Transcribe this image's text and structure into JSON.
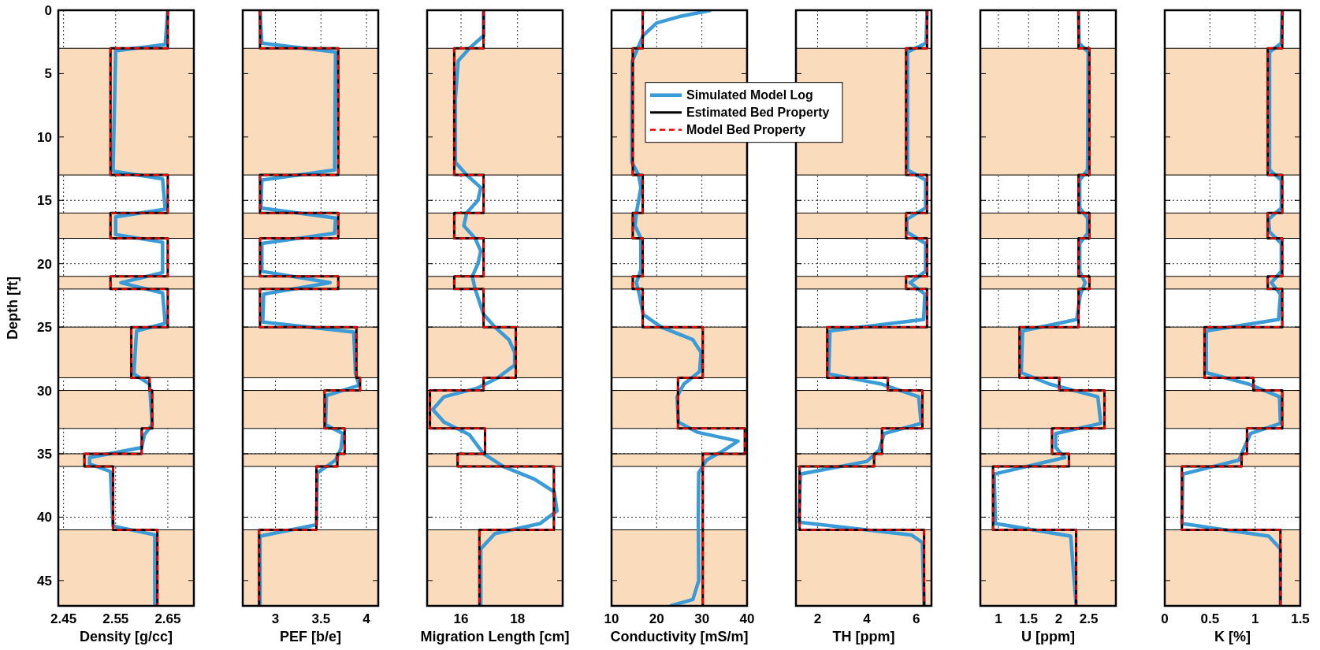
{
  "chart_data": [
    {
      "type": "line",
      "xlabel": "Density [g/cc]",
      "ylabel": "Depth [ft]",
      "xlim": [
        2.44,
        2.7
      ],
      "xticks": [
        2.45,
        2.55,
        2.65
      ],
      "ylim": [
        47,
        0
      ],
      "yticks": [
        0,
        5,
        10,
        15,
        20,
        25,
        30,
        35,
        40,
        45
      ],
      "grid": true,
      "bands": [
        {
          "axis": "y",
          "from": 3,
          "to": 13,
          "color": "#fadcbc"
        },
        {
          "axis": "y",
          "from": 16,
          "to": 18,
          "color": "#fadcbc"
        },
        {
          "axis": "y",
          "from": 21,
          "to": 22,
          "color": "#fadcbc"
        },
        {
          "axis": "y",
          "from": 25,
          "to": 29,
          "color": "#fadcbc"
        },
        {
          "axis": "y",
          "from": 30,
          "to": 33,
          "color": "#fadcbc"
        },
        {
          "axis": "y",
          "from": 35,
          "to": 36,
          "color": "#fadcbc"
        },
        {
          "axis": "y",
          "from": 41,
          "to": 47,
          "color": "#fadcbc"
        }
      ],
      "series": [
        {
          "color": "#3b9bd6",
          "line_style": "solid",
          "x": [
            2.65,
            2.645,
            2.55,
            2.545,
            2.64,
            2.645,
            2.55,
            2.55,
            2.64,
            2.64,
            2.56,
            2.64,
            2.645,
            2.59,
            2.585,
            2.615,
            2.62,
            2.605,
            2.6,
            2.5,
            2.5,
            2.54,
            2.545,
            2.625,
            2.625
          ],
          "values": [
            0,
            2.7,
            3.2,
            12.7,
            13.3,
            15.7,
            16.3,
            17.7,
            18.3,
            20.7,
            21.5,
            22.3,
            24.7,
            25.3,
            28.7,
            29.5,
            32.7,
            33.5,
            34.5,
            35.3,
            35.8,
            36.4,
            40.7,
            41.4,
            47
          ]
        },
        {
          "color": "#000000",
          "line_style": "solid",
          "x": [
            2.65,
            2.65,
            2.54,
            2.54,
            2.65,
            2.65,
            2.54,
            2.54,
            2.65,
            2.65,
            2.54,
            2.54,
            2.65,
            2.65,
            2.58,
            2.58,
            2.615,
            2.615,
            2.62,
            2.62,
            2.6,
            2.6,
            2.49,
            2.49,
            2.545,
            2.545,
            2.63,
            2.63
          ],
          "values": [
            0,
            3,
            3,
            13,
            13,
            16,
            16,
            18,
            18,
            21,
            21,
            22,
            22,
            25,
            25,
            29,
            29,
            30,
            30,
            33,
            33,
            35,
            35,
            36,
            36,
            41,
            41,
            47
          ]
        },
        {
          "color": "#ff0000",
          "line_style": "dashed",
          "x": [
            2.65,
            2.65,
            2.54,
            2.54,
            2.65,
            2.65,
            2.54,
            2.54,
            2.65,
            2.65,
            2.54,
            2.54,
            2.65,
            2.65,
            2.58,
            2.58,
            2.615,
            2.615,
            2.62,
            2.62,
            2.6,
            2.6,
            2.49,
            2.49,
            2.545,
            2.545,
            2.63,
            2.63
          ],
          "values": [
            0,
            3,
            3,
            13,
            13,
            16,
            16,
            18,
            18,
            21,
            21,
            22,
            22,
            25,
            25,
            29,
            29,
            30,
            30,
            33,
            33,
            35,
            35,
            36,
            36,
            41,
            41,
            47
          ]
        }
      ]
    },
    {
      "type": "line",
      "xlabel": "PEF [b/e]",
      "xlim": [
        2.64,
        4.13
      ],
      "xticks": [
        3,
        3.5,
        4
      ],
      "ylim": [
        47,
        0
      ],
      "yticks": [
        0,
        5,
        10,
        15,
        20,
        25,
        30,
        35,
        40,
        45
      ],
      "grid": true,
      "tick_labels": "x",
      "bands": [
        {
          "axis": "y",
          "from": 3,
          "to": 13,
          "color": "#fadcbc"
        },
        {
          "axis": "y",
          "from": 16,
          "to": 18,
          "color": "#fadcbc"
        },
        {
          "axis": "y",
          "from": 21,
          "to": 22,
          "color": "#fadcbc"
        },
        {
          "axis": "y",
          "from": 25,
          "to": 29,
          "color": "#fadcbc"
        },
        {
          "axis": "y",
          "from": 30,
          "to": 33,
          "color": "#fadcbc"
        },
        {
          "axis": "y",
          "from": 35,
          "to": 36,
          "color": "#fadcbc"
        },
        {
          "axis": "y",
          "from": 41,
          "to": 47,
          "color": "#fadcbc"
        }
      ],
      "series": [
        {
          "color": "#3b9bd6",
          "line_style": "solid",
          "x": [
            2.83,
            2.85,
            3.66,
            3.65,
            2.85,
            2.84,
            3.66,
            3.65,
            2.85,
            2.85,
            3.6,
            2.87,
            2.86,
            3.86,
            3.88,
            3.92,
            3.56,
            3.55,
            3.74,
            3.72,
            3.66,
            3.46,
            3.45,
            2.83,
            2.83
          ],
          "values": [
            0,
            2.6,
            3.3,
            12.6,
            13.4,
            15.6,
            16.4,
            17.6,
            18.4,
            20.6,
            21.5,
            22.4,
            24.6,
            25.4,
            28.7,
            29.6,
            30.4,
            32.7,
            33.4,
            34.6,
            35.5,
            36.5,
            40.6,
            41.5,
            47
          ]
        },
        {
          "color": "#000000",
          "line_style": "solid",
          "x": [
            2.83,
            2.83,
            3.69,
            3.69,
            2.83,
            2.83,
            3.69,
            3.69,
            2.83,
            2.83,
            3.69,
            3.69,
            2.83,
            2.83,
            3.89,
            3.89,
            3.93,
            3.93,
            3.54,
            3.54,
            3.76,
            3.76,
            3.68,
            3.68,
            3.45,
            3.45,
            2.82,
            2.82
          ],
          "values": [
            0,
            3,
            3,
            13,
            13,
            16,
            16,
            18,
            18,
            21,
            21,
            22,
            22,
            25,
            25,
            29,
            29,
            30,
            30,
            33,
            33,
            35,
            35,
            36,
            36,
            41,
            41,
            47
          ]
        },
        {
          "color": "#ff0000",
          "line_style": "dashed",
          "x": [
            2.83,
            2.83,
            3.69,
            3.69,
            2.83,
            2.83,
            3.69,
            3.69,
            2.83,
            2.83,
            3.69,
            3.69,
            2.83,
            2.83,
            3.89,
            3.89,
            3.93,
            3.93,
            3.54,
            3.54,
            3.76,
            3.76,
            3.68,
            3.68,
            3.45,
            3.45,
            2.82,
            2.82
          ],
          "values": [
            0,
            3,
            3,
            13,
            13,
            16,
            16,
            18,
            18,
            21,
            21,
            22,
            22,
            25,
            25,
            29,
            29,
            30,
            30,
            33,
            33,
            35,
            35,
            36,
            36,
            41,
            41,
            47
          ]
        }
      ]
    },
    {
      "type": "line",
      "xlabel": "Migration Length [cm]",
      "xlim": [
        14.8,
        19.6
      ],
      "xticks": [
        16,
        18
      ],
      "ylim": [
        47,
        0
      ],
      "yticks": [
        0,
        5,
        10,
        15,
        20,
        25,
        30,
        35,
        40,
        45
      ],
      "grid": true,
      "tick_labels": "x",
      "bands": [
        {
          "axis": "y",
          "from": 3,
          "to": 13,
          "color": "#fadcbc"
        },
        {
          "axis": "y",
          "from": 16,
          "to": 18,
          "color": "#fadcbc"
        },
        {
          "axis": "y",
          "from": 21,
          "to": 22,
          "color": "#fadcbc"
        },
        {
          "axis": "y",
          "from": 25,
          "to": 29,
          "color": "#fadcbc"
        },
        {
          "axis": "y",
          "from": 30,
          "to": 33,
          "color": "#fadcbc"
        },
        {
          "axis": "y",
          "from": 35,
          "to": 36,
          "color": "#fadcbc"
        },
        {
          "axis": "y",
          "from": 41,
          "to": 47,
          "color": "#fadcbc"
        }
      ],
      "series": [
        {
          "color": "#3b9bd6",
          "line_style": "solid",
          "x": [
            16.8,
            16.8,
            16.3,
            15.9,
            15.8,
            15.8,
            16.2,
            16.7,
            16.6,
            16.2,
            16.1,
            16.5,
            16.7,
            16.6,
            16.4,
            16.5,
            16.8,
            17.2,
            17.7,
            17.9,
            17.9,
            17.3,
            16.6,
            15.4,
            15,
            15.4,
            16.3,
            16.8,
            17.5,
            18.6,
            19.3,
            19.4,
            18.8,
            17.2,
            16.7,
            16.7
          ],
          "values": [
            0,
            2,
            3,
            4,
            7,
            12,
            13,
            14,
            15,
            16,
            17,
            18,
            19,
            20,
            21,
            22,
            24,
            25,
            26,
            27,
            28,
            29,
            29.8,
            30.5,
            31.5,
            32.5,
            33.5,
            35,
            36,
            37,
            38,
            39.5,
            40.5,
            41.3,
            42.5,
            47
          ]
        },
        {
          "color": "#000000",
          "line_style": "solid",
          "x": [
            16.8,
            16.8,
            15.76,
            15.76,
            16.8,
            16.8,
            15.76,
            15.76,
            16.8,
            16.8,
            15.76,
            15.76,
            16.8,
            16.8,
            17.94,
            17.94,
            16.8,
            16.8,
            14.9,
            14.9,
            16.85,
            16.85,
            15.88,
            15.88,
            19.29,
            19.29,
            16.65,
            16.65
          ],
          "values": [
            0,
            3,
            3,
            13,
            13,
            16,
            16,
            18,
            18,
            21,
            21,
            22,
            22,
            25,
            25,
            29,
            29,
            30,
            30,
            33,
            33,
            35,
            35,
            36,
            36,
            41,
            41,
            47
          ]
        },
        {
          "color": "#ff0000",
          "line_style": "dashed",
          "x": [
            16.8,
            16.8,
            15.76,
            15.76,
            16.8,
            16.8,
            15.76,
            15.76,
            16.8,
            16.8,
            15.76,
            15.76,
            16.8,
            16.8,
            17.94,
            17.94,
            16.8,
            16.8,
            14.9,
            14.9,
            16.85,
            16.85,
            15.88,
            15.88,
            19.29,
            19.29,
            16.65,
            16.65
          ],
          "values": [
            0,
            3,
            3,
            13,
            13,
            16,
            16,
            18,
            18,
            21,
            21,
            22,
            22,
            25,
            25,
            29,
            29,
            30,
            30,
            33,
            33,
            35,
            35,
            36,
            36,
            41,
            41,
            47
          ]
        }
      ]
    },
    {
      "type": "line",
      "xlabel": "Conductivity [mS/m]",
      "xlim": [
        10,
        40
      ],
      "xticks": [
        10,
        20,
        30,
        40
      ],
      "ylim": [
        47,
        0
      ],
      "yticks": [
        0,
        5,
        10,
        15,
        20,
        25,
        30,
        35,
        40,
        45
      ],
      "grid": true,
      "tick_labels": "x",
      "legend": "top right",
      "bands": [
        {
          "axis": "y",
          "from": 3,
          "to": 13,
          "color": "#fadcbc"
        },
        {
          "axis": "y",
          "from": 16,
          "to": 18,
          "color": "#fadcbc"
        },
        {
          "axis": "y",
          "from": 21,
          "to": 22,
          "color": "#fadcbc"
        },
        {
          "axis": "y",
          "from": 25,
          "to": 29,
          "color": "#fadcbc"
        },
        {
          "axis": "y",
          "from": 30,
          "to": 33,
          "color": "#fadcbc"
        },
        {
          "axis": "y",
          "from": 35,
          "to": 36,
          "color": "#fadcbc"
        },
        {
          "axis": "y",
          "from": 41,
          "to": 47,
          "color": "#fadcbc"
        }
      ],
      "series": [
        {
          "name": "Simulated Model Log",
          "color": "#3b9bd6",
          "line_style": "solid",
          "x": [
            32,
            25,
            20,
            17,
            15.8,
            14.6,
            14.5,
            14.5,
            16,
            16.5,
            15.5,
            15.2,
            16.5,
            16.5,
            15.5,
            16.2,
            17,
            21,
            28,
            29.8,
            29.5,
            26,
            24.5,
            24.8,
            29,
            38,
            35,
            31,
            29.3,
            29.2,
            29.3,
            28,
            23
          ],
          "values": [
            0,
            0.5,
            1,
            2,
            3,
            4,
            8,
            12,
            13,
            14,
            16,
            17,
            18,
            20.5,
            21.5,
            22.5,
            24,
            25,
            26,
            27,
            28.5,
            29.5,
            30.5,
            32.5,
            33.3,
            34,
            34.7,
            35.5,
            36.5,
            40,
            45,
            46.5,
            47
          ]
        },
        {
          "name": "Estimated Bed Property",
          "color": "#000000",
          "line_style": "solid",
          "x": [
            16.9,
            16.9,
            14.7,
            14.7,
            16.9,
            16.9,
            14.7,
            14.7,
            16.9,
            16.9,
            14.7,
            14.7,
            16.9,
            16.9,
            30.2,
            30.2,
            24.7,
            24.7,
            24.7,
            24.7,
            39.5,
            39.5,
            30.2,
            30.2,
            30.2,
            30.2,
            30.2,
            30.2
          ],
          "values": [
            0,
            3,
            3,
            13,
            13,
            16,
            16,
            18,
            18,
            21,
            21,
            22,
            22,
            25,
            25,
            29,
            29,
            30,
            30,
            33,
            33,
            35,
            35,
            36,
            36,
            41,
            41,
            47
          ]
        },
        {
          "name": "Model Bed Property",
          "color": "#ff0000",
          "line_style": "dashed",
          "x": [
            16.9,
            16.9,
            14.7,
            14.7,
            16.9,
            16.9,
            14.7,
            14.7,
            16.9,
            16.9,
            14.7,
            14.7,
            16.9,
            16.9,
            30.2,
            30.2,
            24.7,
            24.7,
            24.7,
            24.7,
            39.5,
            39.5,
            30.2,
            30.2,
            30.2,
            30.2,
            30.2,
            30.2
          ],
          "values": [
            0,
            3,
            3,
            13,
            13,
            16,
            16,
            18,
            18,
            21,
            21,
            22,
            22,
            25,
            25,
            29,
            29,
            30,
            30,
            33,
            33,
            35,
            35,
            36,
            36,
            41,
            41,
            47
          ]
        }
      ]
    },
    {
      "type": "line",
      "xlabel": "TH [ppm]",
      "xlim": [
        1.12,
        6.62
      ],
      "xticks": [
        2,
        4,
        6
      ],
      "ylim": [
        47,
        0
      ],
      "yticks": [
        0,
        5,
        10,
        15,
        20,
        25,
        30,
        35,
        40,
        45
      ],
      "grid": true,
      "tick_labels": "x",
      "bands": [
        {
          "axis": "y",
          "from": 3,
          "to": 13,
          "color": "#fadcbc"
        },
        {
          "axis": "y",
          "from": 16,
          "to": 18,
          "color": "#fadcbc"
        },
        {
          "axis": "y",
          "from": 21,
          "to": 22,
          "color": "#fadcbc"
        },
        {
          "axis": "y",
          "from": 25,
          "to": 29,
          "color": "#fadcbc"
        },
        {
          "axis": "y",
          "from": 30,
          "to": 33,
          "color": "#fadcbc"
        },
        {
          "axis": "y",
          "from": 35,
          "to": 36,
          "color": "#fadcbc"
        },
        {
          "axis": "y",
          "from": 41,
          "to": 47,
          "color": "#fadcbc"
        }
      ],
      "series": [
        {
          "color": "#3b9bd6",
          "line_style": "solid",
          "x": [
            6.44,
            6.4,
            5.65,
            5.65,
            6.38,
            6.38,
            5.62,
            5.62,
            6.38,
            6.38,
            5.75,
            6.35,
            6.3,
            2.5,
            2.45,
            4.6,
            6.1,
            6.2,
            4.7,
            4.5,
            4,
            1.3,
            1.25,
            5.8,
            6.25,
            6.32
          ],
          "values": [
            0,
            2.6,
            3.3,
            12.6,
            13.4,
            15.6,
            16.5,
            17.5,
            18.4,
            20.6,
            21.5,
            22.4,
            24.4,
            25.3,
            28.7,
            29.5,
            30.5,
            32.6,
            33.4,
            34.7,
            35.6,
            36.6,
            40.4,
            41.4,
            42,
            47
          ]
        },
        {
          "color": "#000000",
          "line_style": "solid",
          "x": [
            6.44,
            6.44,
            5.59,
            5.59,
            6.44,
            6.44,
            5.59,
            5.59,
            6.44,
            6.44,
            5.59,
            5.59,
            6.44,
            6.44,
            2.39,
            2.39,
            4.85,
            4.85,
            6.25,
            6.25,
            4.61,
            4.61,
            4.29,
            4.29,
            1.27,
            1.27,
            6.32,
            6.32
          ],
          "values": [
            0,
            3,
            3,
            13,
            13,
            16,
            16,
            18,
            18,
            21,
            21,
            22,
            22,
            25,
            25,
            29,
            29,
            30,
            30,
            33,
            33,
            35,
            35,
            36,
            36,
            41,
            41,
            47
          ]
        },
        {
          "color": "#ff0000",
          "line_style": "dashed",
          "x": [
            6.44,
            6.44,
            5.59,
            5.59,
            6.44,
            6.44,
            5.59,
            5.59,
            6.44,
            6.44,
            5.59,
            5.59,
            6.44,
            6.44,
            2.39,
            2.39,
            4.85,
            4.85,
            6.25,
            6.25,
            4.61,
            4.61,
            4.29,
            4.29,
            1.27,
            1.27,
            6.32,
            6.32
          ],
          "values": [
            0,
            3,
            3,
            13,
            13,
            16,
            16,
            18,
            18,
            21,
            21,
            22,
            22,
            25,
            25,
            29,
            29,
            30,
            30,
            33,
            33,
            35,
            35,
            36,
            36,
            41,
            41,
            47
          ]
        }
      ]
    },
    {
      "type": "line",
      "xlabel": "U [ppm]",
      "xlim": [
        0.7,
        2.95
      ],
      "xticks": [
        1,
        1.5,
        2,
        2.5
      ],
      "ylim": [
        47,
        0
      ],
      "yticks": [
        0,
        5,
        10,
        15,
        20,
        25,
        30,
        35,
        40,
        45
      ],
      "grid": true,
      "tick_labels": "x",
      "bands": [
        {
          "axis": "y",
          "from": 3,
          "to": 13,
          "color": "#fadcbc"
        },
        {
          "axis": "y",
          "from": 16,
          "to": 18,
          "color": "#fadcbc"
        },
        {
          "axis": "y",
          "from": 21,
          "to": 22,
          "color": "#fadcbc"
        },
        {
          "axis": "y",
          "from": 25,
          "to": 29,
          "color": "#fadcbc"
        },
        {
          "axis": "y",
          "from": 30,
          "to": 33,
          "color": "#fadcbc"
        },
        {
          "axis": "y",
          "from": 35,
          "to": 36,
          "color": "#fadcbc"
        },
        {
          "axis": "y",
          "from": 41,
          "to": 47,
          "color": "#fadcbc"
        }
      ],
      "series": [
        {
          "color": "#3b9bd6",
          "line_style": "solid",
          "x": [
            2.33,
            2.34,
            2.49,
            2.48,
            2.35,
            2.35,
            2.48,
            2.48,
            2.35,
            2.35,
            2.44,
            2.36,
            2.3,
            1.4,
            1.38,
            1.85,
            2.65,
            2.7,
            1.95,
            1.95,
            2.1,
            0.93,
            0.95,
            2.2,
            2.29
          ],
          "values": [
            0,
            2.6,
            3.3,
            12.6,
            13.4,
            15.6,
            16.4,
            17.6,
            18.4,
            20.6,
            21.5,
            22.4,
            24.4,
            25.3,
            28.6,
            29.5,
            30.5,
            32.6,
            33.4,
            34.5,
            35.3,
            36.6,
            40.5,
            41.5,
            47
          ]
        },
        {
          "color": "#000000",
          "line_style": "solid",
          "x": [
            2.33,
            2.33,
            2.51,
            2.51,
            2.33,
            2.33,
            2.51,
            2.51,
            2.33,
            2.33,
            2.51,
            2.51,
            2.33,
            2.33,
            1.35,
            1.35,
            2.01,
            2.01,
            2.76,
            2.76,
            1.89,
            1.89,
            2.17,
            2.17,
            0.91,
            0.91,
            2.29,
            2.29
          ],
          "values": [
            0,
            3,
            3,
            13,
            13,
            16,
            16,
            18,
            18,
            21,
            21,
            22,
            22,
            25,
            25,
            29,
            29,
            30,
            30,
            33,
            33,
            35,
            35,
            36,
            36,
            41,
            41,
            47
          ]
        },
        {
          "color": "#ff0000",
          "line_style": "dashed",
          "x": [
            2.33,
            2.33,
            2.51,
            2.51,
            2.33,
            2.33,
            2.51,
            2.51,
            2.33,
            2.33,
            2.51,
            2.51,
            2.33,
            2.33,
            1.35,
            1.35,
            2.01,
            2.01,
            2.76,
            2.76,
            1.89,
            1.89,
            2.17,
            2.17,
            0.91,
            0.91,
            2.29,
            2.29
          ],
          "values": [
            0,
            3,
            3,
            13,
            13,
            16,
            16,
            18,
            18,
            21,
            21,
            22,
            22,
            25,
            25,
            29,
            29,
            30,
            30,
            33,
            33,
            35,
            35,
            36,
            36,
            41,
            41,
            47
          ]
        }
      ]
    },
    {
      "type": "line",
      "xlabel": "K [%]",
      "xlim": [
        0,
        1.5
      ],
      "xticks": [
        0,
        0.5,
        1,
        1.5
      ],
      "ylim": [
        47,
        0
      ],
      "yticks": [
        0,
        5,
        10,
        15,
        20,
        25,
        30,
        35,
        40,
        45
      ],
      "grid": true,
      "tick_labels": "x",
      "bands": [
        {
          "axis": "y",
          "from": 3,
          "to": 13,
          "color": "#fadcbc"
        },
        {
          "axis": "y",
          "from": 16,
          "to": 18,
          "color": "#fadcbc"
        },
        {
          "axis": "y",
          "from": 21,
          "to": 22,
          "color": "#fadcbc"
        },
        {
          "axis": "y",
          "from": 25,
          "to": 29,
          "color": "#fadcbc"
        },
        {
          "axis": "y",
          "from": 30,
          "to": 33,
          "color": "#fadcbc"
        },
        {
          "axis": "y",
          "from": 35,
          "to": 36,
          "color": "#fadcbc"
        },
        {
          "axis": "y",
          "from": 41,
          "to": 47,
          "color": "#fadcbc"
        }
      ],
      "series": [
        {
          "color": "#3b9bd6",
          "line_style": "solid",
          "x": [
            1.3,
            1.29,
            1.16,
            1.16,
            1.29,
            1.29,
            1.15,
            1.16,
            1.29,
            1.29,
            1.18,
            1.28,
            1.26,
            0.46,
            0.46,
            0.93,
            1.27,
            1.28,
            0.95,
            0.88,
            0.82,
            0.2,
            0.19,
            1.15,
            1.28,
            1.28
          ],
          "values": [
            0,
            2.6,
            3.3,
            12.6,
            13.4,
            15.6,
            16.5,
            17.5,
            18.4,
            20.6,
            21.5,
            22.4,
            24.4,
            25.3,
            28.6,
            29.5,
            30.5,
            32.6,
            33.4,
            34.5,
            35.5,
            36.6,
            40.5,
            41.5,
            42.5,
            47
          ]
        },
        {
          "color": "#000000",
          "line_style": "solid",
          "x": [
            1.3,
            1.3,
            1.14,
            1.14,
            1.3,
            1.3,
            1.14,
            1.14,
            1.3,
            1.3,
            1.14,
            1.14,
            1.3,
            1.3,
            0.44,
            0.44,
            0.98,
            0.98,
            1.3,
            1.3,
            0.91,
            0.91,
            0.85,
            0.85,
            0.19,
            0.19,
            1.28,
            1.28
          ],
          "values": [
            0,
            3,
            3,
            13,
            13,
            16,
            16,
            18,
            18,
            21,
            21,
            22,
            22,
            25,
            25,
            29,
            29,
            30,
            30,
            33,
            33,
            35,
            35,
            36,
            36,
            41,
            41,
            47
          ]
        },
        {
          "color": "#ff0000",
          "line_style": "dashed",
          "x": [
            1.3,
            1.3,
            1.14,
            1.14,
            1.3,
            1.3,
            1.14,
            1.14,
            1.3,
            1.3,
            1.14,
            1.14,
            1.3,
            1.3,
            0.44,
            0.44,
            0.98,
            0.98,
            1.3,
            1.3,
            0.91,
            0.91,
            0.85,
            0.85,
            0.19,
            0.19,
            1.28,
            1.28
          ],
          "values": [
            0,
            3,
            3,
            13,
            13,
            16,
            16,
            18,
            18,
            21,
            21,
            22,
            22,
            25,
            25,
            29,
            29,
            30,
            30,
            33,
            33,
            35,
            35,
            36,
            36,
            41,
            41,
            47
          ]
        }
      ]
    }
  ]
}
